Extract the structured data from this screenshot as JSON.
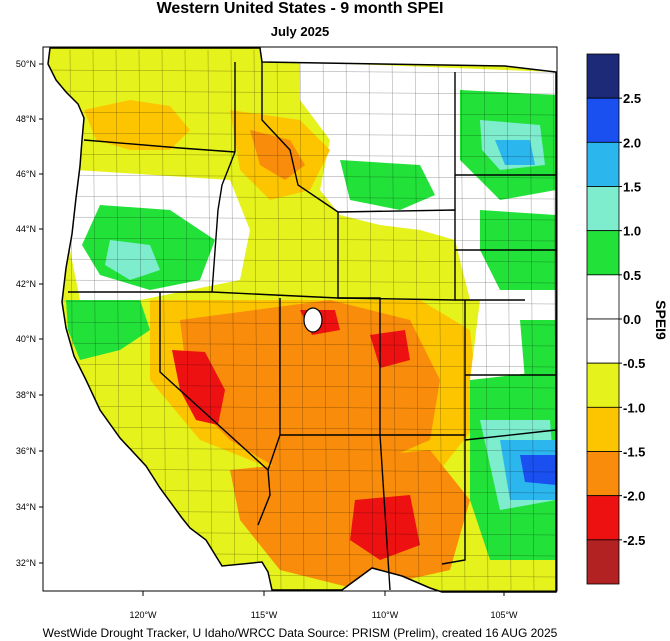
{
  "title": "Western United States - 9 month SPEI",
  "subtitle": "July 2025",
  "footer": "WestWide Drought Tracker, U Idaho/WRCC Data Source: PRISM (Prelim), created 16 AUG 2025",
  "latitude_labels": [
    "50°N",
    "48°N",
    "46°N",
    "44°N",
    "42°N",
    "40°N",
    "38°N",
    "36°N",
    "34°N",
    "32°N"
  ],
  "longitude_labels": [
    "120°W",
    "115°W",
    "110°W",
    "105°W"
  ],
  "colorbar": {
    "title": "SPEI9",
    "labels": [
      "2.5",
      "2.0",
      "1.5",
      "1.0",
      "0.5",
      "0.0",
      "-0.5",
      "-1.0",
      "-1.5",
      "-2.0",
      "-2.5"
    ],
    "bins": [
      {
        "color": "#1c2a78"
      },
      {
        "color": "#1a4ff0"
      },
      {
        "color": "#2bb6ee"
      },
      {
        "color": "#7dedcd"
      },
      {
        "color": "#22e23a"
      },
      {
        "color": "#ffffff"
      },
      {
        "color": "#ffffff"
      },
      {
        "color": "#e5f21c"
      },
      {
        "color": "#fdc500"
      },
      {
        "color": "#f98c0a"
      },
      {
        "color": "#ee1111"
      },
      {
        "color": "#b22222"
      }
    ]
  },
  "anomaly_colors": {
    "white": "#ffffff",
    "light_yellow": "#e5f21c",
    "yellow": "#fdc500",
    "orange": "#f98c0a",
    "red": "#ee1111",
    "green": "#22e23a",
    "aqua": "#7dedcd",
    "light_blue": "#2bb6ee",
    "blue": "#1a4ff0"
  }
}
